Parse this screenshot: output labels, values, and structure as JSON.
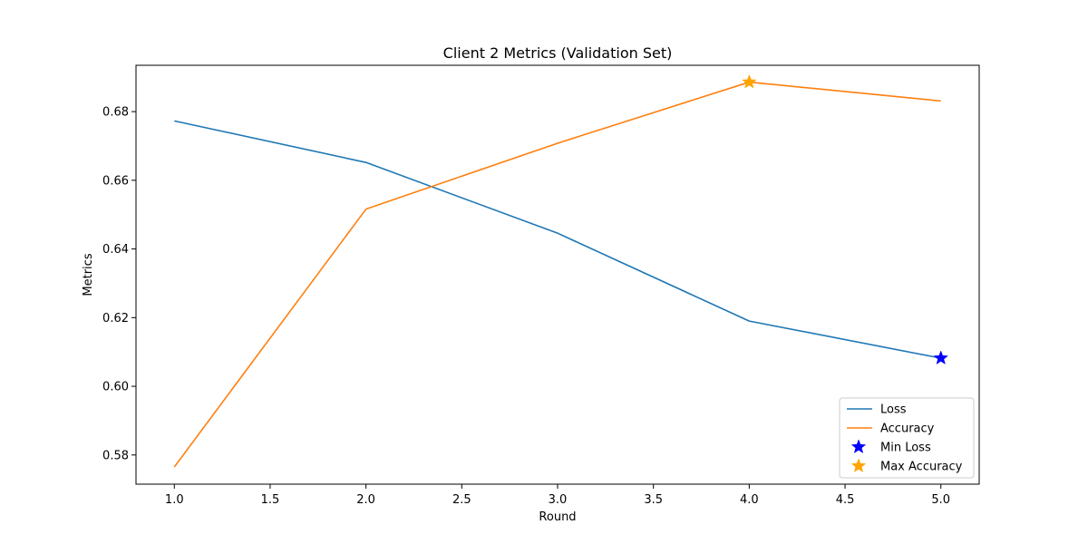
{
  "chart_data": {
    "type": "line",
    "title": "Client 2 Metrics (Validation Set)",
    "xlabel": "Round",
    "ylabel": "Metrics",
    "xlim": [
      0.8,
      5.2
    ],
    "ylim": [
      0.5715,
      0.6935
    ],
    "grid": false,
    "legend_position": "bottom-right",
    "x_ticks": [
      "1.0",
      "1.5",
      "2.0",
      "2.5",
      "3.0",
      "3.5",
      "4.0",
      "4.5",
      "5.0"
    ],
    "y_ticks": [
      "0.58",
      "0.60",
      "0.62",
      "0.64",
      "0.66",
      "0.68"
    ],
    "x": [
      1,
      2,
      3,
      4,
      5
    ],
    "series": [
      {
        "name": "Loss",
        "color": "#1f77b4",
        "values": [
          0.6773,
          0.6652,
          0.6446,
          0.619,
          0.6082
        ]
      },
      {
        "name": "Accuracy",
        "color": "#ff7f0e",
        "values": [
          0.5765,
          0.6516,
          0.6708,
          0.6886,
          0.6831
        ]
      }
    ],
    "markers": [
      {
        "name": "Min Loss",
        "color": "#0000ff",
        "x": 5,
        "y": 0.6082,
        "icon": "star-icon"
      },
      {
        "name": "Max Accuracy",
        "color": "#ffa500",
        "x": 4,
        "y": 0.6886,
        "icon": "star-icon"
      }
    ]
  }
}
